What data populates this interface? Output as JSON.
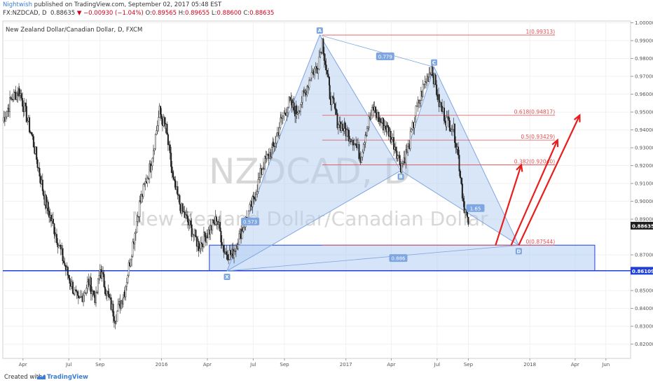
{
  "header": {
    "author": "Nightwish",
    "published_text": "published on TradingView.com, September 02, 2017 05:48 EST",
    "symbol": "FX:NZDCAD, D",
    "last": "0.88635",
    "change_arrow": "▼",
    "change": "−0.00930 (−1.04%)",
    "o_label": "O:",
    "o_value": "0.89565",
    "h_label": "H:",
    "h_value": "0.89655",
    "l_label": "L:",
    "l_value": "0.88600",
    "c_label": "C:",
    "c_value": "0.88635"
  },
  "chart_title": "New Zealand Dollar/Canadian Dollar, D, FXCM",
  "watermark": {
    "line1": "NZDCAD, D",
    "line2": "New Zealand Dollar/Canadian Dollar"
  },
  "footer": {
    "created_with": "Created with",
    "brand": "TradingView"
  },
  "colors": {
    "bullish": "#1e1e1e",
    "pattern_fill": "#b3cdf2",
    "pattern_stroke": "#7ea6e0",
    "fib_line": "#e05050",
    "arrow": "#e81e1e",
    "support_line": "#1f3fd8",
    "watermark": "#d7d7d7"
  },
  "chart_data": {
    "type": "candlestick",
    "title": "New Zealand Dollar/Canadian Dollar, D, FXCM",
    "y_ticks": [
      "1.00000",
      "0.99000",
      "0.98000",
      "0.97000",
      "0.96000",
      "0.95000",
      "0.94000",
      "0.93000",
      "0.92000",
      "0.91000",
      "0.90000",
      "0.89000",
      "0.87000",
      "0.85000",
      "0.84000",
      "0.83000",
      "0.82000"
    ],
    "ylim": [
      0.812,
      1.001
    ],
    "x_ticks": [
      "Apr",
      "Jul",
      "Sep",
      "2016",
      "Apr",
      "Jul",
      "Sep",
      "2017",
      "Apr",
      "Jul",
      "Sep",
      "2018",
      "Apr",
      "Jun"
    ],
    "x_tick_dates": [
      "2015-04-01",
      "2015-07-01",
      "2015-09-01",
      "2016-01-01",
      "2016-04-01",
      "2016-07-01",
      "2016-09-01",
      "2017-01-01",
      "2017-04-01",
      "2017-07-01",
      "2017-09-01",
      "2018-01-01",
      "2018-04-01",
      "2018-06-01"
    ],
    "xlim": [
      "2015-02-20",
      "2018-07-20"
    ],
    "price_path": [
      [
        "2015-02-20",
        0.945
      ],
      [
        "2015-03-10",
        0.958
      ],
      [
        "2015-03-25",
        0.962
      ],
      [
        "2015-04-20",
        0.935
      ],
      [
        "2015-05-15",
        0.9
      ],
      [
        "2015-06-05",
        0.882
      ],
      [
        "2015-06-25",
        0.862
      ],
      [
        "2015-07-20",
        0.843
      ],
      [
        "2015-08-10",
        0.855
      ],
      [
        "2015-08-24",
        0.845
      ],
      [
        "2015-09-01",
        0.862
      ],
      [
        "2015-09-15",
        0.848
      ],
      [
        "2015-10-01",
        0.835
      ],
      [
        "2015-10-20",
        0.85
      ],
      [
        "2015-11-01",
        0.87
      ],
      [
        "2015-11-20",
        0.9
      ],
      [
        "2015-12-10",
        0.92
      ],
      [
        "2015-12-28",
        0.95
      ],
      [
        "2016-01-10",
        0.94
      ],
      [
        "2016-01-25",
        0.91
      ],
      [
        "2016-02-10",
        0.895
      ],
      [
        "2016-02-28",
        0.885
      ],
      [
        "2016-03-15",
        0.875
      ],
      [
        "2016-04-01",
        0.882
      ],
      [
        "2016-04-20",
        0.89
      ],
      [
        "2016-05-05",
        0.872
      ],
      [
        "2016-05-20",
        0.87
      ],
      [
        "2016-06-10",
        0.885
      ],
      [
        "2016-07-01",
        0.9
      ],
      [
        "2016-07-20",
        0.92
      ],
      [
        "2016-08-10",
        0.93
      ],
      [
        "2016-08-25",
        0.945
      ],
      [
        "2016-09-10",
        0.955
      ],
      [
        "2016-09-25",
        0.95
      ],
      [
        "2016-10-10",
        0.96
      ],
      [
        "2016-10-25",
        0.972
      ],
      [
        "2016-11-05",
        0.975
      ],
      [
        "2016-11-15",
        0.99
      ],
      [
        "2016-11-30",
        0.96
      ],
      [
        "2016-12-15",
        0.945
      ],
      [
        "2016-12-30",
        0.94
      ],
      [
        "2017-01-15",
        0.935
      ],
      [
        "2017-01-30",
        0.925
      ],
      [
        "2017-02-10",
        0.94
      ],
      [
        "2017-02-25",
        0.952
      ],
      [
        "2017-03-10",
        0.945
      ],
      [
        "2017-03-25",
        0.94
      ],
      [
        "2017-04-10",
        0.93
      ],
      [
        "2017-04-20",
        0.92
      ],
      [
        "2017-05-05",
        0.93
      ],
      [
        "2017-05-20",
        0.95
      ],
      [
        "2017-06-05",
        0.965
      ],
      [
        "2017-06-20",
        0.975
      ],
      [
        "2017-07-05",
        0.955
      ],
      [
        "2017-07-20",
        0.945
      ],
      [
        "2017-08-01",
        0.942
      ],
      [
        "2017-08-10",
        0.93
      ],
      [
        "2017-08-22",
        0.9
      ],
      [
        "2017-09-01",
        0.887
      ]
    ],
    "last_price": {
      "value": 0.88635,
      "label": "0.88635"
    },
    "support_level": {
      "value": 0.86109,
      "label": "0.86109"
    },
    "harmonic_pattern": {
      "points": [
        {
          "name": "X",
          "date": "2016-05-10",
          "price": 0.861
        },
        {
          "name": "A",
          "date": "2016-11-10",
          "price": 0.9931
        },
        {
          "name": "B",
          "date": "2017-04-20",
          "price": 0.9172
        },
        {
          "name": "C",
          "date": "2017-06-25",
          "price": 0.9752
        },
        {
          "name": "D",
          "date": "2017-12-10",
          "price": 0.8754
        }
      ],
      "ratios": [
        {
          "label": "0.779",
          "date": "2017-03-20",
          "price": 0.981
        },
        {
          "label": "0.573",
          "date": "2016-06-25",
          "price": 0.8885
        },
        {
          "label": "1.65",
          "date": "2017-09-15",
          "price": 0.896
        },
        {
          "label": "0.886",
          "date": "2017-04-15",
          "price": 0.868
        }
      ]
    },
    "fib_levels": [
      {
        "ratio": "1",
        "price": "0.99313",
        "label": "1(0.99313)"
      },
      {
        "ratio": "0.618",
        "price": "0.94817",
        "label": "0.618(0.94817)"
      },
      {
        "ratio": "0.5",
        "price": "0.93429",
        "label": "0.5(0.93429)"
      },
      {
        "ratio": "0.382",
        "price": "0.92040",
        "label": "0.382(0.92040)"
      },
      {
        "ratio": "0",
        "price": "0.87544",
        "label": "0(0.87544)"
      }
    ],
    "target_zone": {
      "from": "2016-04-05",
      "to": "2018-05-10",
      "top": 0.87544,
      "bottom": 0.86109
    },
    "arrows": [
      {
        "from_date": "2017-10-25",
        "from_price": 0.8754,
        "to_date": "2017-12-15",
        "to_price": 0.9204
      },
      {
        "from_date": "2017-11-25",
        "from_price": 0.8754,
        "to_date": "2018-02-25",
        "to_price": 0.9343
      },
      {
        "from_date": "2017-12-10",
        "from_price": 0.8754,
        "to_date": "2018-04-10",
        "to_price": 0.9482
      }
    ],
    "grid": true
  }
}
